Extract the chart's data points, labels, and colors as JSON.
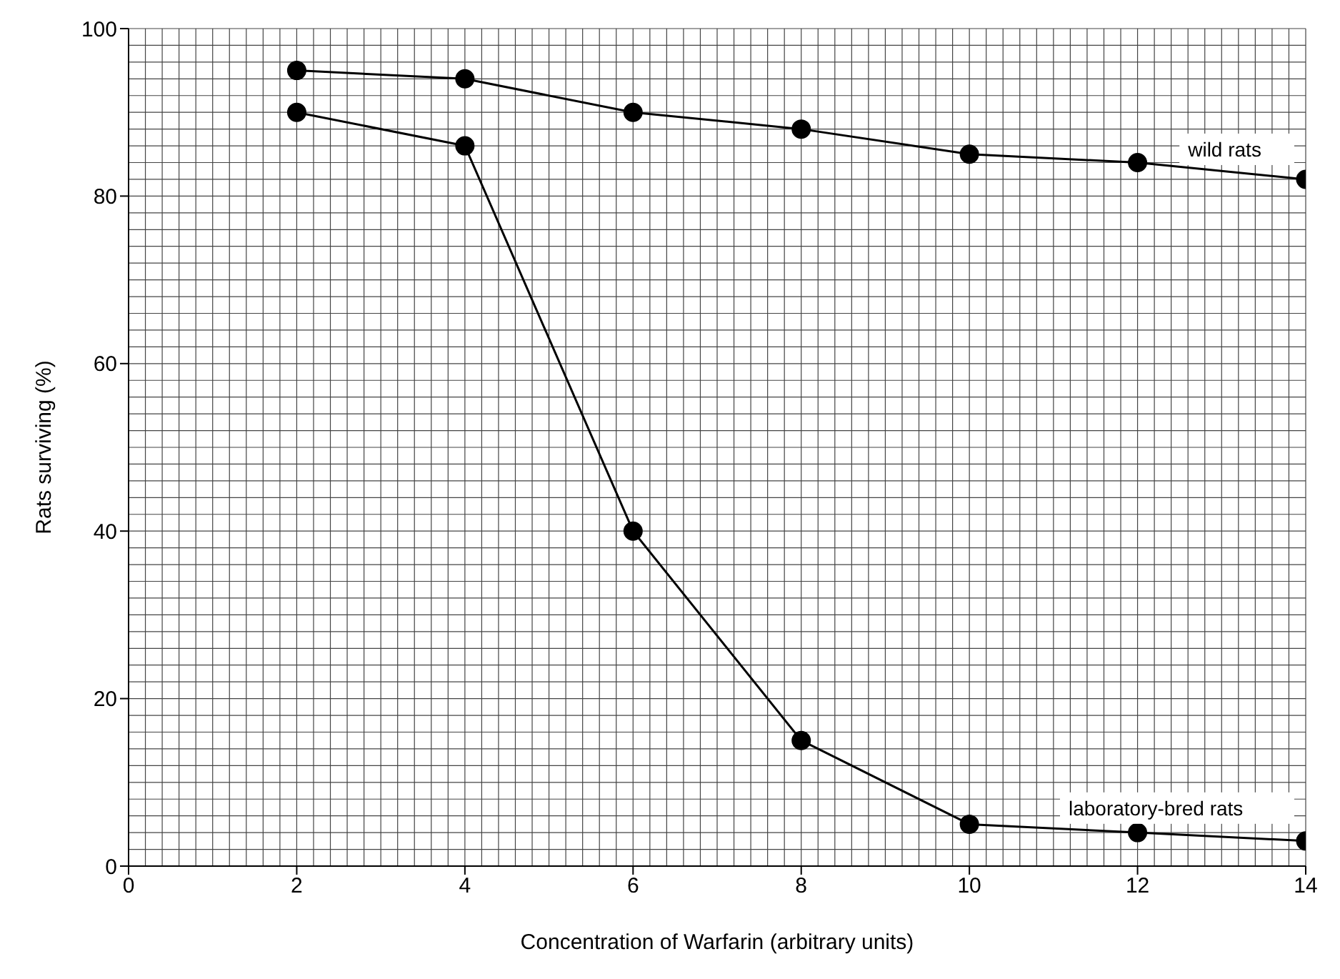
{
  "chart_data": {
    "type": "line",
    "xlabel": "Concentration of Warfarin (arbitrary units)",
    "ylabel": "Rats surviving (%)",
    "x": [
      2,
      4,
      6,
      8,
      10,
      12,
      14
    ],
    "series": [
      {
        "name": "wild rats",
        "color": "#000000",
        "values": [
          95,
          94,
          90,
          88,
          85,
          84,
          82
        ]
      },
      {
        "name": "laboratory-bred rats",
        "color": "#000000",
        "values": [
          90,
          86,
          40,
          15,
          5,
          4,
          3
        ]
      }
    ],
    "xlim": [
      0,
      14
    ],
    "xticks": [
      0,
      2,
      4,
      6,
      8,
      10,
      12,
      14
    ],
    "ylim": [
      0,
      100
    ],
    "yticks": [
      0,
      20,
      40,
      60,
      80,
      100
    ],
    "grid": true,
    "marker": "circle",
    "line_style": "solid",
    "legend": false
  }
}
